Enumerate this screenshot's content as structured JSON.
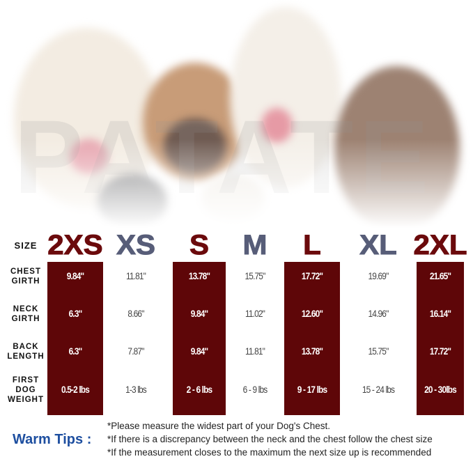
{
  "watermark": "PATATE",
  "header": {
    "size_label": "SIZE"
  },
  "sizes": [
    {
      "name": "2XS",
      "highlight": true
    },
    {
      "name": "XS",
      "highlight": false
    },
    {
      "name": "S",
      "highlight": true
    },
    {
      "name": "M",
      "highlight": false
    },
    {
      "name": "L",
      "highlight": true
    },
    {
      "name": "XL",
      "highlight": false
    },
    {
      "name": "2XL",
      "highlight": true
    }
  ],
  "rows": [
    {
      "label_lines": [
        "CHEST",
        "GIRTH"
      ],
      "values": [
        "9.84\"",
        "11.81\"",
        "13.78\"",
        "15.75\"",
        "17.72\"",
        "19.69\"",
        "21.65\""
      ]
    },
    {
      "label_lines": [
        "NECK",
        "GIRTH"
      ],
      "values": [
        "6.3\"",
        "8.66\"",
        "9.84\"",
        "11.02\"",
        "12.60\"",
        "14.96\"",
        "16.14\""
      ]
    },
    {
      "label_lines": [
        "BACK",
        "LENGTH"
      ],
      "values": [
        "6.3\"",
        "7.87\"",
        "9.84\"",
        "11.81\"",
        "13.78\"",
        "15.75\"",
        "17.72\""
      ]
    },
    {
      "label_lines": [
        "FIRST",
        "DOG",
        "WEIGHT"
      ],
      "values": [
        "0.5-2 lbs",
        "1-3 lbs",
        "2 - 6 lbs",
        "6 - 9 lbs",
        "9 - 17 lbs",
        "15 - 24 lbs",
        "20 - 30lbs"
      ]
    }
  ],
  "tips": {
    "title": "Warm Tips :",
    "lines": [
      "*Please measure the widest part of your Dog's Chest.",
      "*If there is a discrepancy between the neck and the chest  follow the chest size",
      "*If the measurement closes to the maximum the next size up is recommended"
    ]
  },
  "colors": {
    "highlight_column": "#5e0608",
    "size_dark": "#6b0a0c",
    "size_grey": "#575d78",
    "tips_title": "#1e4fa0"
  }
}
